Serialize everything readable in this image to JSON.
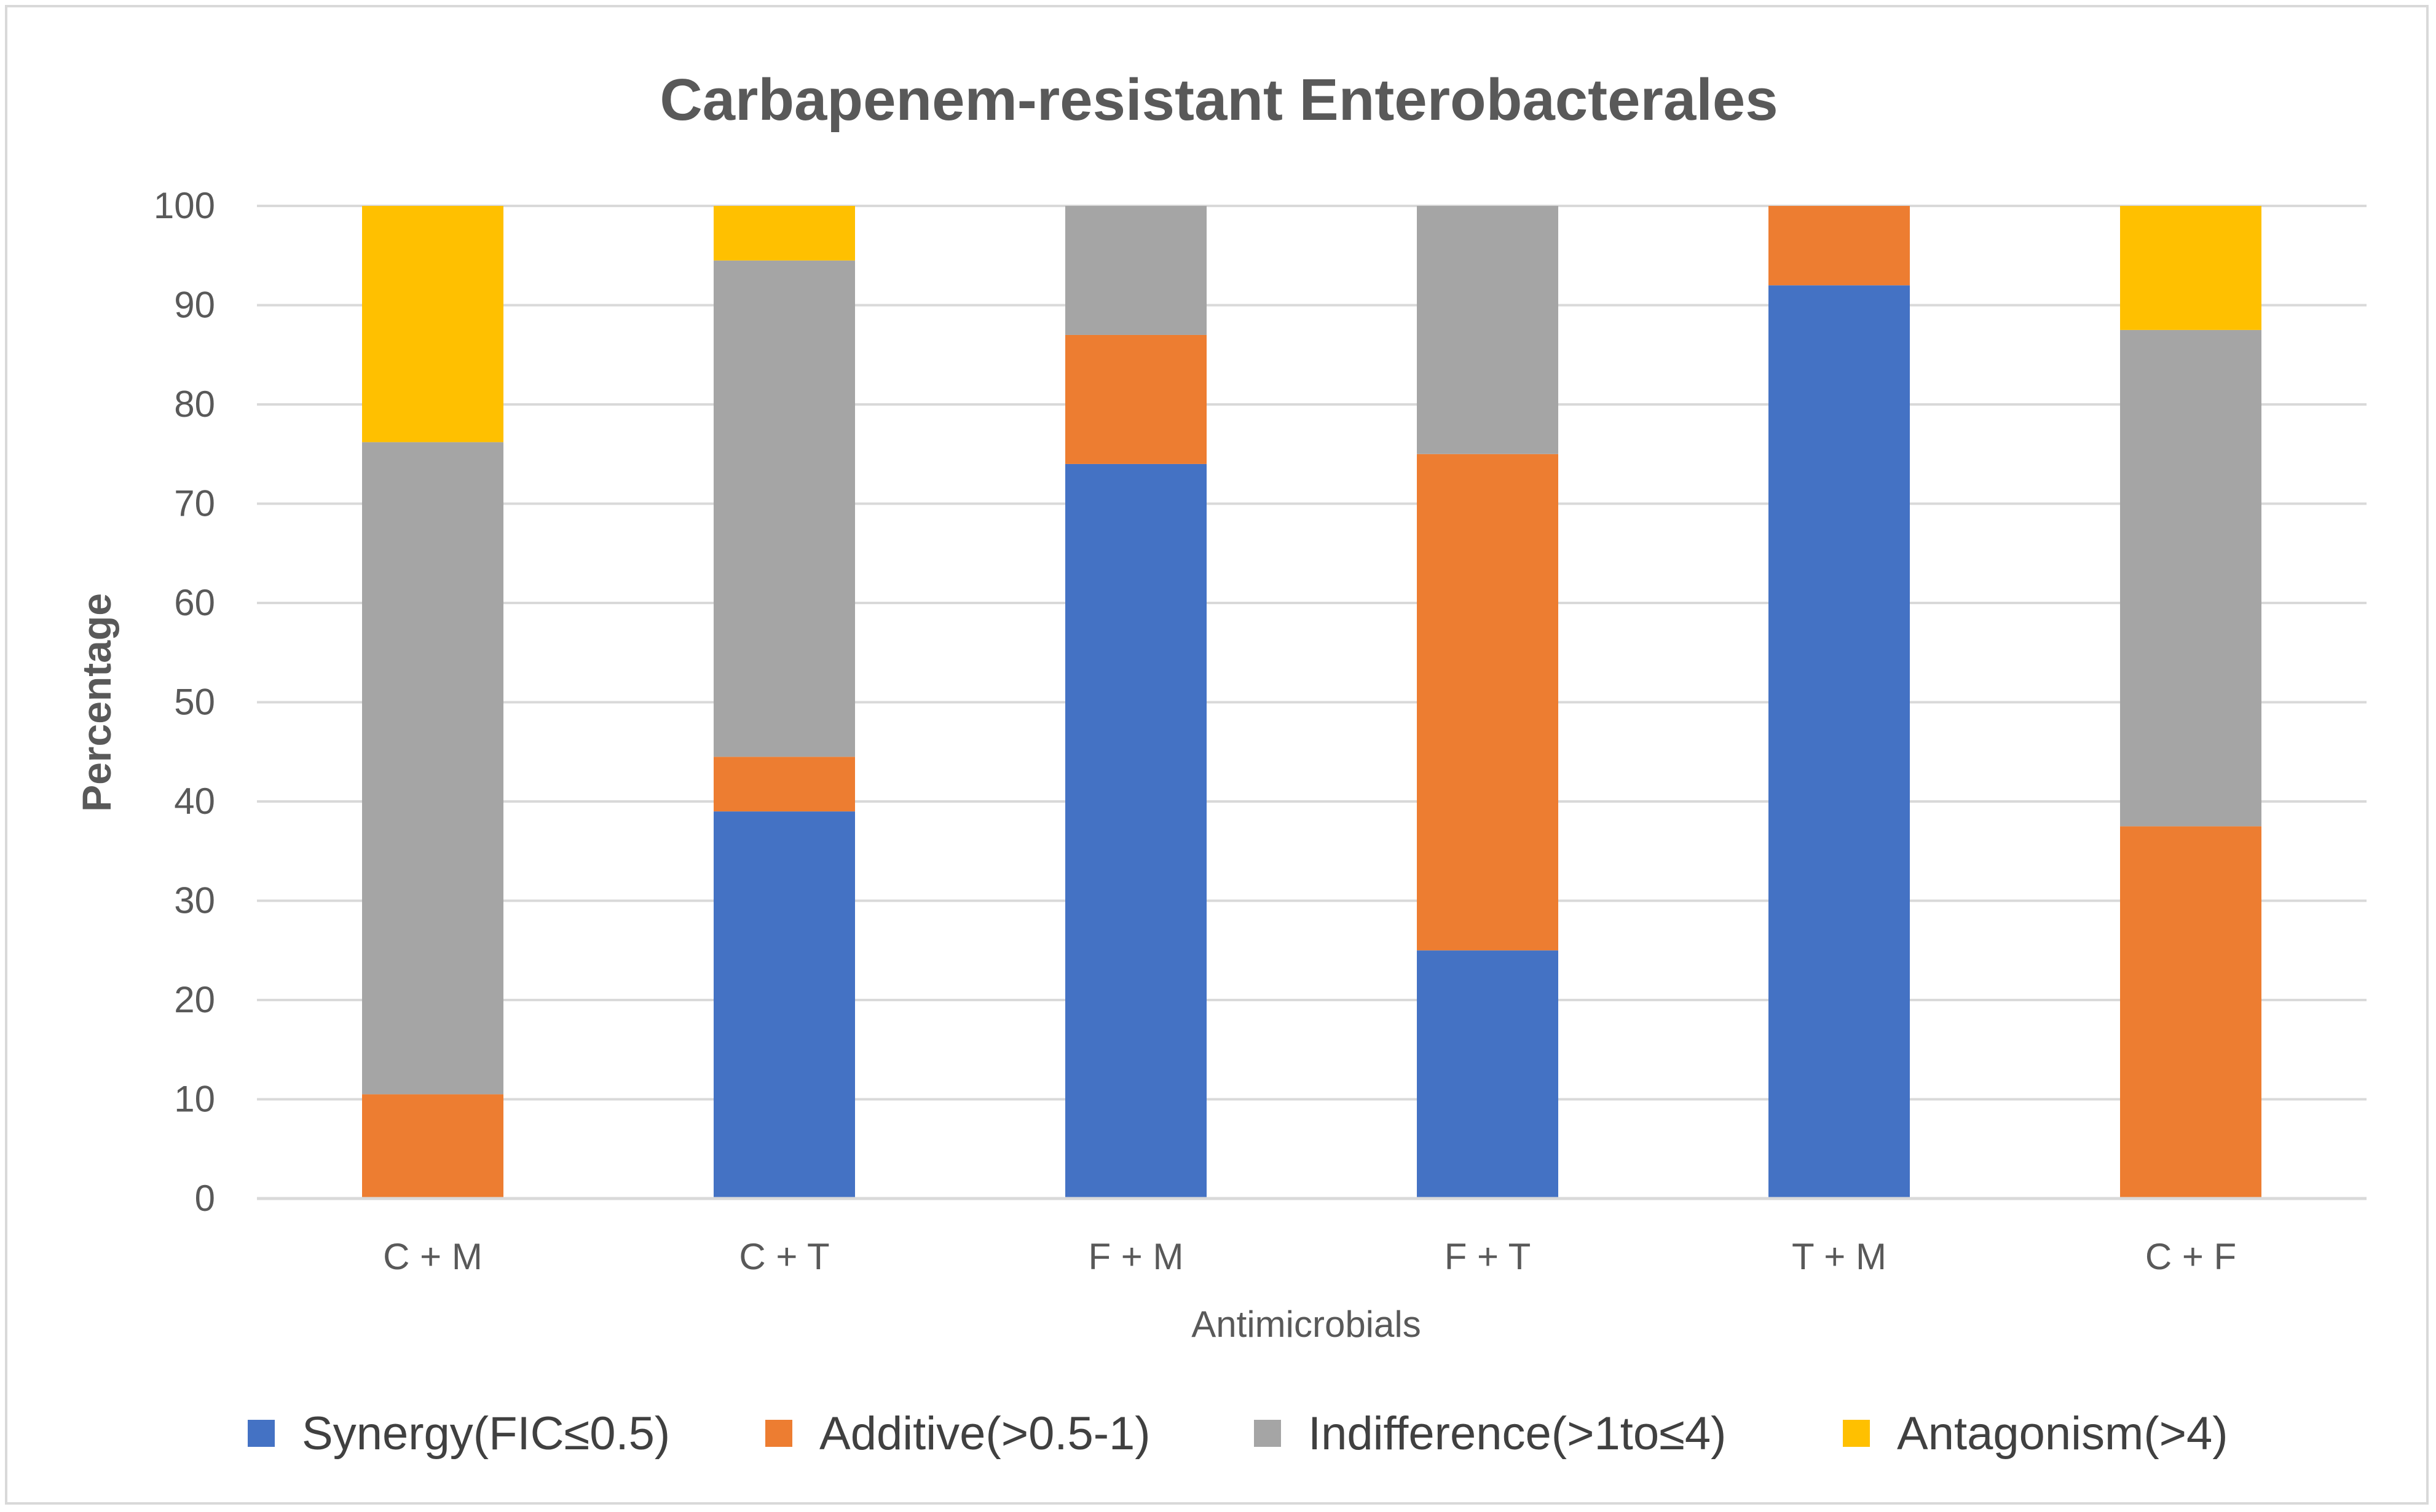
{
  "chart_data": {
    "type": "bar",
    "stacked": true,
    "title": "Carbapenem-resistant Enterobacterales",
    "xlabel": "Antimicrobials",
    "ylabel": "Percentage",
    "ylim": [
      0,
      100
    ],
    "yticks": [
      0,
      10,
      20,
      30,
      40,
      50,
      60,
      70,
      80,
      90,
      100
    ],
    "categories": [
      "C + M",
      "C + T",
      "F + M",
      "F + T",
      "T + M",
      "C + F"
    ],
    "series": [
      {
        "name": "Synergy(FIC≤0.5)",
        "color": "#4472c4",
        "values": [
          0,
          39,
          74,
          25,
          92,
          0
        ]
      },
      {
        "name": "Additive(>0.5-1)",
        "color": "#ed7d31",
        "values": [
          10.5,
          5.5,
          13,
          50,
          8,
          37.5
        ]
      },
      {
        "name": "Indifference(>1to≤4)",
        "color": "#a5a5a5",
        "values": [
          65.7,
          50,
          13,
          25,
          0,
          50
        ]
      },
      {
        "name": "Antagonism(>4)",
        "color": "#ffc000",
        "values": [
          23.8,
          5.5,
          0,
          0,
          0,
          12.5
        ]
      }
    ],
    "grid": true,
    "legend_position": "bottom"
  }
}
